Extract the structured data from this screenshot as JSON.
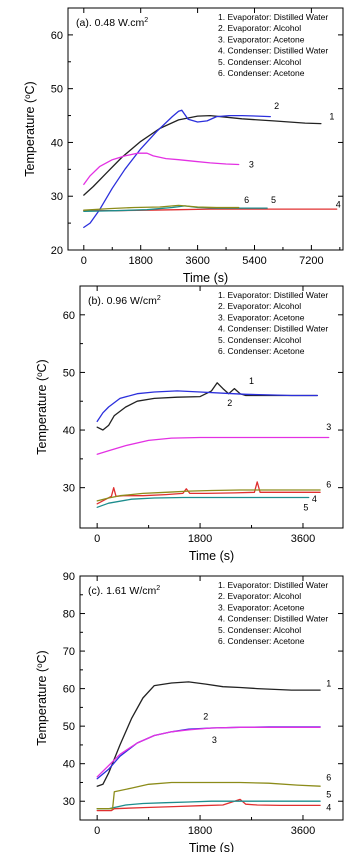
{
  "chart_data": [
    {
      "type": "line",
      "title": "(a). 0.48 W.cm",
      "title_sup": "2",
      "xlabel": "Time (s)",
      "ylabel_text": "Temperature (",
      "ylabel_sup": "o",
      "ylabel_unit": "C)",
      "xlim": [
        -500,
        8200
      ],
      "ylim": [
        20,
        65
      ],
      "xticks": [
        0,
        1800,
        3600,
        5400,
        7200
      ],
      "xtick_labels": [
        "0",
        "1800",
        "3600",
        "5400",
        "7200"
      ],
      "yticks": [
        20,
        30,
        40,
        50,
        60
      ],
      "ytick_labels": [
        "20",
        "30",
        "40",
        "50",
        "60"
      ],
      "legend": [
        "1. Evaporator: Distilled Water",
        "2. Evaporator: Alcohol",
        "3. Evaporator: Acetone",
        "4. Condenser: Distilled Water",
        "5. Condenser: Alcohol",
        "6. Condenser: Acetone"
      ],
      "series": [
        {
          "id": "1",
          "color": "#222222",
          "x": [
            0,
            300,
            700,
            1200,
            1800,
            2400,
            3000,
            3600,
            4000,
            4500,
            5000,
            5500,
            6000,
            6500,
            7000,
            7500
          ],
          "y": [
            30.2,
            31.8,
            34.2,
            37.2,
            40.2,
            42.6,
            44.2,
            44.9,
            45.0,
            44.7,
            44.4,
            44.2,
            44.0,
            43.8,
            43.6,
            43.5
          ],
          "label_x": 7850,
          "label_y": 44.3
        },
        {
          "id": "2",
          "color": "#2b2fdc",
          "x": [
            0,
            200,
            500,
            900,
            1300,
            1800,
            2300,
            2800,
            3000,
            3100,
            3300,
            3600,
            3900,
            4200,
            4600,
            5000,
            5500,
            5900
          ],
          "y": [
            24.2,
            25.0,
            27.5,
            31.5,
            35.0,
            38.8,
            42.0,
            44.8,
            45.8,
            46.0,
            44.3,
            43.8,
            44.0,
            44.8,
            45.0,
            45.0,
            44.9,
            44.8
          ],
          "label_x": 6100,
          "label_y": 46.2
        },
        {
          "id": "3",
          "color": "#e331e3",
          "x": [
            0,
            200,
            500,
            900,
            1300,
            1700,
            2000,
            2200,
            2600,
            3000,
            3500,
            4000,
            4500,
            4900
          ],
          "y": [
            32.2,
            33.8,
            35.5,
            36.8,
            37.5,
            38.0,
            38.0,
            37.5,
            37.0,
            36.8,
            36.5,
            36.2,
            36.0,
            35.9
          ],
          "label_x": 5300,
          "label_y": 35.3
        },
        {
          "id": "4",
          "color": "#e03030",
          "x": [
            0,
            1000,
            2000,
            3000,
            4000,
            5000,
            6000,
            7000,
            8000
          ],
          "y": [
            27.3,
            27.3,
            27.4,
            27.5,
            27.6,
            27.6,
            27.6,
            27.6,
            27.6
          ],
          "label_x": 8050,
          "label_y": 27.9
        },
        {
          "id": "5",
          "color": "#1c8d8d",
          "x": [
            0,
            1000,
            2000,
            2800,
            3200,
            3600,
            4200,
            5000,
            5800
          ],
          "y": [
            27.2,
            27.3,
            27.5,
            27.9,
            28.2,
            27.9,
            27.8,
            27.8,
            27.8
          ],
          "label_x": 6000,
          "label_y": 28.7
        },
        {
          "id": "6",
          "color": "#8c8c1a",
          "x": [
            0,
            800,
            1600,
            2400,
            3000,
            3600,
            4200,
            4900
          ],
          "y": [
            27.4,
            27.7,
            27.9,
            28.0,
            28.3,
            28.0,
            27.9,
            27.9
          ],
          "label_x": 5150,
          "label_y": 28.7
        }
      ]
    },
    {
      "type": "line",
      "title": "(b). 0.96 W/cm",
      "title_sup": "2",
      "xlabel": "Time (s)",
      "ylabel_text": "Temperature (",
      "ylabel_sup": "o",
      "ylabel_unit": "C)",
      "xlim": [
        -300,
        4300
      ],
      "ylim": [
        23,
        65
      ],
      "xticks": [
        0,
        1800,
        3600
      ],
      "xtick_labels": [
        "0",
        "1800",
        "3600"
      ],
      "yticks": [
        30,
        40,
        50,
        60
      ],
      "ytick_labels": [
        "30",
        "40",
        "50",
        "60"
      ],
      "legend": [
        "1. Evaporator: Distilled Water",
        "2. Evaporator: Alcohol",
        "3. Evaporator: Acetone",
        "4. Condenser: Distilled Water",
        "5. Condenser: Alcohol",
        "6. Condenser: Acetone"
      ],
      "series": [
        {
          "id": "1",
          "color": "#222222",
          "x": [
            0,
            100,
            200,
            300,
            500,
            700,
            1000,
            1400,
            1800,
            2000,
            2100,
            2200,
            2300,
            2400,
            2500,
            2600,
            3000,
            3400,
            3600,
            3850
          ],
          "y": [
            40.5,
            40.0,
            40.8,
            42.5,
            44.0,
            45.0,
            45.5,
            45.7,
            45.8,
            46.8,
            48.2,
            47.2,
            46.3,
            47.2,
            46.3,
            46.0,
            46.0,
            46.0,
            46.0,
            46.0
          ],
          "label_x": 2700,
          "label_y": 48.0
        },
        {
          "id": "2",
          "color": "#2b2fdc",
          "x": [
            0,
            100,
            200,
            400,
            700,
            1000,
            1400,
            1800,
            2200,
            2600,
            3000,
            3400,
            3850
          ],
          "y": [
            41.5,
            43.0,
            44.0,
            45.5,
            46.3,
            46.6,
            46.8,
            46.6,
            46.4,
            46.2,
            46.1,
            46.0,
            46.0
          ],
          "label_x": 2320,
          "label_y": 44.2
        },
        {
          "id": "3",
          "color": "#e331e3",
          "x": [
            0,
            200,
            500,
            900,
            1300,
            1800,
            2500,
            3000,
            3600,
            4050
          ],
          "y": [
            35.8,
            36.4,
            37.3,
            38.2,
            38.6,
            38.7,
            38.7,
            38.7,
            38.7,
            38.7
          ],
          "label_x": 4050,
          "label_y": 40.0
        },
        {
          "id": "4",
          "color": "#e03030",
          "x": [
            0,
            250,
            290,
            330,
            450,
            800,
            1200,
            1500,
            1560,
            1620,
            1900,
            2400,
            2750,
            2800,
            2850,
            3200,
            3600,
            3900
          ],
          "y": [
            27.2,
            28.5,
            30.0,
            28.5,
            28.6,
            28.6,
            28.8,
            29.0,
            29.8,
            29.0,
            29.0,
            29.1,
            29.2,
            31.0,
            29.2,
            29.2,
            29.2,
            29.2
          ],
          "label_x": 3800,
          "label_y": 27.5
        },
        {
          "id": "5",
          "color": "#1c8d8d",
          "x": [
            0,
            200,
            600,
            1000,
            1500,
            2000,
            2500,
            3000,
            3500,
            3700
          ],
          "y": [
            26.6,
            27.3,
            28.0,
            28.2,
            28.3,
            28.3,
            28.3,
            28.3,
            28.3,
            28.3
          ],
          "label_x": 3650,
          "label_y": 26.0
        },
        {
          "id": "6",
          "color": "#8c8c1a",
          "x": [
            0,
            200,
            400,
            800,
            1200,
            1600,
            2000,
            2500,
            3000,
            3500,
            3900
          ],
          "y": [
            27.7,
            28.2,
            28.6,
            29.0,
            29.2,
            29.4,
            29.5,
            29.6,
            29.6,
            29.6,
            29.6
          ],
          "label_x": 4050,
          "label_y": 30.0
        }
      ]
    },
    {
      "type": "line",
      "title": "(c). 1.61 W/cm",
      "title_sup": "2",
      "xlabel": "Time (s)",
      "ylabel_text": "Temperature (",
      "ylabel_sup": "o",
      "ylabel_unit": "C)",
      "xlim": [
        -300,
        4300
      ],
      "ylim": [
        25,
        90
      ],
      "xticks": [
        0,
        1800,
        3600
      ],
      "xtick_labels": [
        "0",
        "1800",
        "3600"
      ],
      "yticks": [
        30,
        40,
        50,
        60,
        70,
        80,
        90
      ],
      "ytick_labels": [
        "30",
        "40",
        "50",
        "60",
        "70",
        "80",
        "90"
      ],
      "legend": [
        "1. Evaporator: Distilled Water",
        "2. Evaporator: Alcohol",
        "3. Evaporator: Acetone",
        "4. Condenser: Distilled Water",
        "5. Condenser: Alcohol",
        "6. Condenser: Acetone"
      ],
      "series": [
        {
          "id": "1",
          "color": "#222222",
          "x": [
            0,
            100,
            200,
            400,
            600,
            800,
            1000,
            1300,
            1600,
            1900,
            2200,
            2500,
            2800,
            3100,
            3400,
            3700,
            3900
          ],
          "y": [
            34.0,
            34.5,
            37.5,
            45.0,
            52.0,
            57.5,
            60.8,
            61.5,
            61.8,
            61.2,
            60.5,
            60.3,
            60.0,
            59.8,
            59.6,
            59.6,
            59.6
          ],
          "label_x": 4050,
          "label_y": 60.5
        },
        {
          "id": "2",
          "color": "#2b2fdc",
          "x": [
            0,
            200,
            400,
            700,
            1000,
            1300,
            1600,
            2000,
            2500,
            3000,
            3500,
            3900
          ],
          "y": [
            36.0,
            38.5,
            42.0,
            45.5,
            47.5,
            48.5,
            49.2,
            49.5,
            49.7,
            49.8,
            49.8,
            49.8
          ],
          "label_x": 1900,
          "label_y": 51.8
        },
        {
          "id": "3",
          "color": "#e331e3",
          "x": [
            0,
            200,
            400,
            700,
            1000,
            1300,
            1600,
            2000,
            2500,
            3000,
            3500,
            3900
          ],
          "y": [
            36.5,
            39.5,
            42.5,
            45.5,
            47.5,
            48.5,
            49.0,
            49.5,
            49.7,
            49.7,
            49.7,
            49.7
          ],
          "label_x": 2050,
          "label_y": 45.5
        },
        {
          "id": "4",
          "color": "#e03030",
          "x": [
            0,
            250,
            300,
            800,
            1400,
            1800,
            2200,
            2500,
            2600,
            2800,
            3200,
            3600,
            3900
          ],
          "y": [
            27.5,
            27.5,
            28.0,
            28.3,
            28.6,
            28.8,
            29.0,
            30.5,
            29.2,
            29.0,
            28.9,
            28.9,
            28.9
          ],
          "label_x": 4050,
          "label_y": 27.5
        },
        {
          "id": "5",
          "color": "#1c8d8d",
          "x": [
            0,
            200,
            500,
            800,
            1200,
            1600,
            2000,
            2500,
            3000,
            3500,
            3900
          ],
          "y": [
            28.0,
            28.0,
            29.0,
            29.4,
            29.6,
            29.8,
            30.0,
            30.0,
            30.0,
            30.0,
            30.0
          ],
          "label_x": 4050,
          "label_y": 31.0
        },
        {
          "id": "6",
          "color": "#8c8c1a",
          "x": [
            0,
            270,
            300,
            600,
            900,
            1300,
            1800,
            2500,
            3000,
            3500,
            3900
          ],
          "y": [
            28.0,
            28.0,
            32.5,
            33.5,
            34.5,
            35.0,
            35.0,
            35.0,
            34.8,
            34.3,
            34.0
          ],
          "label_x": 4050,
          "label_y": 35.5
        }
      ]
    }
  ]
}
